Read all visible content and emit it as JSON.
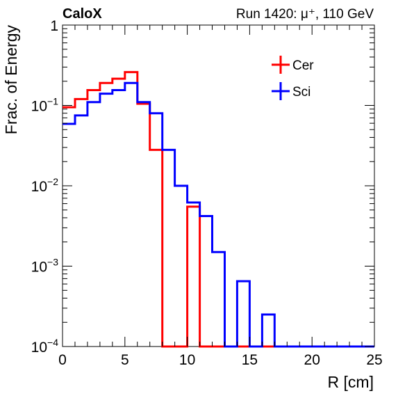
{
  "header": {
    "experiment": "CaloX",
    "run_label": "Run 1420: μ⁺, 110 GeV"
  },
  "chart_data": {
    "type": "line",
    "drawstyle": "histogram-step",
    "xlabel": "R [cm]",
    "ylabel": "Frac. of Energy",
    "xlim": [
      0,
      25
    ],
    "ylim": [
      0.0001,
      1
    ],
    "yscale": "log",
    "x_ticks": [
      "0",
      "5",
      "10",
      "15",
      "20",
      "25"
    ],
    "y_ticks": [
      {
        "base": "1",
        "exp": ""
      },
      {
        "base": "10",
        "exp": "−1"
      },
      {
        "base": "10",
        "exp": "−2"
      },
      {
        "base": "10",
        "exp": "−3"
      },
      {
        "base": "10",
        "exp": "−4"
      }
    ],
    "legend_position": "top-right",
    "bin_edges": [
      0,
      1,
      2,
      3,
      4,
      5,
      6,
      7,
      8,
      9,
      10,
      11,
      12,
      13,
      14,
      15,
      16,
      17,
      18,
      19,
      20,
      21,
      22,
      23,
      24,
      25
    ],
    "series": [
      {
        "name": "Cer",
        "color": "#ff0000",
        "values": [
          0.095,
          0.12,
          0.155,
          0.19,
          0.215,
          0.26,
          0.105,
          0.028,
          0,
          0,
          0.0055,
          0,
          0,
          0,
          0,
          0,
          0,
          0,
          0,
          0,
          0,
          0,
          0,
          0,
          0
        ]
      },
      {
        "name": "Sci",
        "color": "#0000ff",
        "values": [
          0.059,
          0.075,
          0.11,
          0.14,
          0.155,
          0.19,
          0.11,
          0.08,
          0.028,
          0.01,
          0.0062,
          0.0042,
          0.0015,
          0.0001,
          0.00065,
          0.0001,
          0.00025,
          0.0001,
          0.0001,
          0.0001,
          0.0001,
          0.0001,
          0.0001,
          0.0001,
          0.0001
        ]
      }
    ]
  }
}
